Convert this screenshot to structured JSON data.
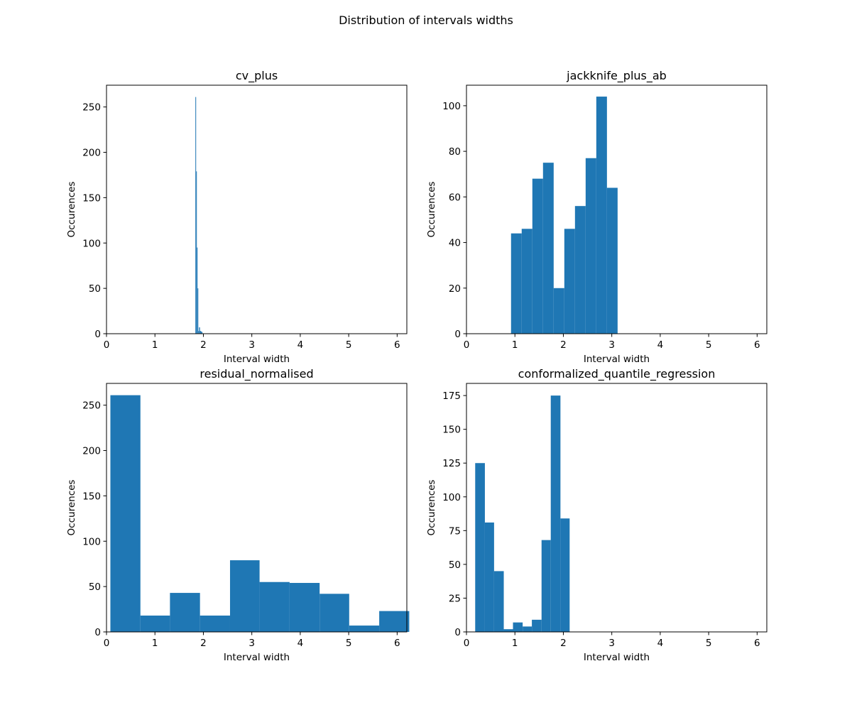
{
  "figure": {
    "title": "Distribution of intervals widths",
    "bar_color": "#1f77b4"
  },
  "chart_data": [
    {
      "type": "histogram",
      "title": "cv_plus",
      "xlabel": "Interval width",
      "ylabel": "Occurences",
      "xlim": [
        0,
        6.2
      ],
      "ylim": [
        0,
        274
      ],
      "xticks": [
        0,
        1,
        2,
        3,
        4,
        5,
        6
      ],
      "yticks": [
        0,
        50,
        100,
        150,
        200,
        250
      ],
      "bins": [
        {
          "x0": 1.835,
          "x1": 1.85,
          "count": 261
        },
        {
          "x0": 1.85,
          "x1": 1.865,
          "count": 179
        },
        {
          "x0": 1.865,
          "x1": 1.88,
          "count": 95
        },
        {
          "x0": 1.88,
          "x1": 1.895,
          "count": 50
        },
        {
          "x0": 1.895,
          "x1": 1.91,
          "count": 3
        },
        {
          "x0": 1.91,
          "x1": 1.93,
          "count": 7
        },
        {
          "x0": 1.93,
          "x1": 1.955,
          "count": 3
        },
        {
          "x0": 1.955,
          "x1": 1.98,
          "count": 2
        }
      ]
    },
    {
      "type": "histogram",
      "title": "jackknife_plus_ab",
      "xlabel": "Interval width",
      "ylabel": "Occurences",
      "xlim": [
        0,
        6.2
      ],
      "ylim": [
        0,
        109
      ],
      "xticks": [
        0,
        1,
        2,
        3,
        4,
        5,
        6
      ],
      "yticks": [
        0,
        20,
        40,
        60,
        80,
        100
      ],
      "bins": [
        {
          "x0": 0.92,
          "x1": 1.14,
          "count": 44
        },
        {
          "x0": 1.14,
          "x1": 1.36,
          "count": 46
        },
        {
          "x0": 1.36,
          "x1": 1.58,
          "count": 68
        },
        {
          "x0": 1.58,
          "x1": 1.8,
          "count": 75
        },
        {
          "x0": 1.8,
          "x1": 2.02,
          "count": 20
        },
        {
          "x0": 2.02,
          "x1": 2.24,
          "count": 46
        },
        {
          "x0": 2.24,
          "x1": 2.46,
          "count": 56
        },
        {
          "x0": 2.46,
          "x1": 2.68,
          "count": 77
        },
        {
          "x0": 2.68,
          "x1": 2.9,
          "count": 104
        },
        {
          "x0": 2.9,
          "x1": 3.12,
          "count": 64
        }
      ]
    },
    {
      "type": "histogram",
      "title": "residual_normalised",
      "xlabel": "Interval width",
      "ylabel": "Occurences",
      "xlim": [
        0,
        6.2
      ],
      "ylim": [
        0,
        274
      ],
      "xticks": [
        0,
        1,
        2,
        3,
        4,
        5,
        6
      ],
      "yticks": [
        0,
        50,
        100,
        150,
        200,
        250
      ],
      "bins": [
        {
          "x0": 0.08,
          "x1": 0.7,
          "count": 261
        },
        {
          "x0": 0.7,
          "x1": 1.31,
          "count": 18
        },
        {
          "x0": 1.31,
          "x1": 1.93,
          "count": 43
        },
        {
          "x0": 1.93,
          "x1": 2.55,
          "count": 18
        },
        {
          "x0": 2.55,
          "x1": 3.16,
          "count": 79
        },
        {
          "x0": 3.16,
          "x1": 3.78,
          "count": 55
        },
        {
          "x0": 3.78,
          "x1": 4.4,
          "count": 54
        },
        {
          "x0": 4.4,
          "x1": 5.01,
          "count": 42
        },
        {
          "x0": 5.01,
          "x1": 5.63,
          "count": 7
        },
        {
          "x0": 5.63,
          "x1": 6.25,
          "count": 23
        }
      ]
    },
    {
      "type": "histogram",
      "title": "conformalized_quantile_regression",
      "xlabel": "Interval width",
      "ylabel": "Occurences",
      "xlim": [
        0,
        6.2
      ],
      "ylim": [
        0,
        184
      ],
      "xticks": [
        0,
        1,
        2,
        3,
        4,
        5,
        6
      ],
      "yticks": [
        0,
        25,
        50,
        75,
        100,
        125,
        150,
        175
      ],
      "bins": [
        {
          "x0": 0.18,
          "x1": 0.38,
          "count": 125
        },
        {
          "x0": 0.38,
          "x1": 0.57,
          "count": 81
        },
        {
          "x0": 0.57,
          "x1": 0.77,
          "count": 45
        },
        {
          "x0": 0.77,
          "x1": 0.96,
          "count": 2
        },
        {
          "x0": 0.96,
          "x1": 1.16,
          "count": 7
        },
        {
          "x0": 1.16,
          "x1": 1.35,
          "count": 4
        },
        {
          "x0": 1.35,
          "x1": 1.55,
          "count": 9
        },
        {
          "x0": 1.55,
          "x1": 1.74,
          "count": 68
        },
        {
          "x0": 1.74,
          "x1": 1.94,
          "count": 175
        },
        {
          "x0": 1.94,
          "x1": 2.13,
          "count": 84
        }
      ]
    }
  ]
}
